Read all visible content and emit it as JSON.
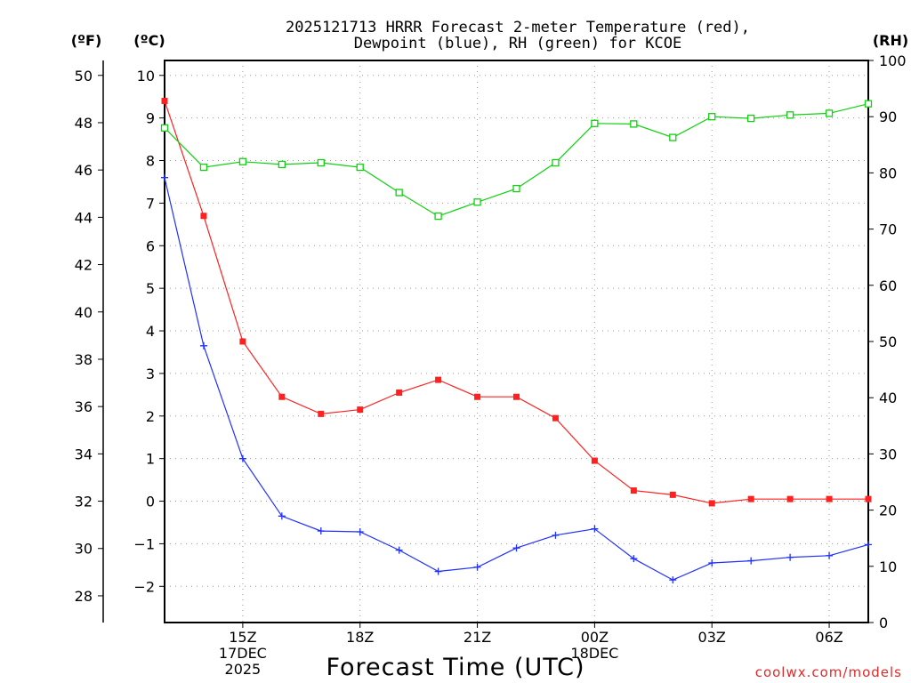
{
  "chart_data": {
    "type": "line",
    "title_lines": [
      "2025121713 HRRR Forecast 2-meter Temperature (red),",
      "Dewpoint (blue), RH (green) for KCOE"
    ],
    "xlabel": "Forecast Time (UTC)",
    "credit": "coolwx.com/models",
    "units": {
      "fahrenheit": "(ºF)",
      "celsius": "(ºC)",
      "rh": "(RH)"
    },
    "x_hours": [
      13,
      14,
      15,
      16,
      17,
      18,
      19,
      20,
      21,
      22,
      23,
      24,
      25,
      26,
      27,
      28,
      29,
      30,
      31
    ],
    "xlim": [
      13,
      31
    ],
    "x_ticks": [
      {
        "hour": 15,
        "lines": [
          "15Z",
          "17DEC",
          "2025"
        ]
      },
      {
        "hour": 18,
        "lines": [
          "18Z"
        ]
      },
      {
        "hour": 21,
        "lines": [
          "21Z"
        ]
      },
      {
        "hour": 24,
        "lines": [
          "00Z",
          "18DEC"
        ]
      },
      {
        "hour": 27,
        "lines": [
          "03Z"
        ]
      },
      {
        "hour": 30,
        "lines": [
          "06Z"
        ]
      }
    ],
    "celsius_axis": {
      "ylim": [
        -2.85,
        10.35
      ],
      "ticks": [
        -2,
        -1,
        0,
        1,
        2,
        3,
        4,
        5,
        6,
        7,
        8,
        9,
        10
      ]
    },
    "fahrenheit_axis": {
      "ticks": [
        28,
        30,
        32,
        34,
        36,
        38,
        40,
        42,
        44,
        46,
        48,
        50
      ]
    },
    "rh_axis": {
      "ylim": [
        0,
        100
      ],
      "ticks": [
        0,
        10,
        20,
        30,
        40,
        50,
        60,
        70,
        80,
        90,
        100
      ]
    },
    "series": [
      {
        "name": "Temperature",
        "color": "#ff2020",
        "marker": "filled-square",
        "axis": "celsius",
        "values": [
          9.4,
          6.7,
          3.75,
          2.45,
          2.05,
          2.15,
          2.55,
          2.85,
          2.45,
          2.45,
          1.95,
          0.95,
          0.25,
          0.15,
          -0.05,
          0.05,
          0.05,
          0.05,
          0.05
        ]
      },
      {
        "name": "Dewpoint",
        "color": "#2030ff",
        "marker": "plus",
        "axis": "celsius",
        "values": [
          7.6,
          3.65,
          1.0,
          -0.35,
          -0.7,
          -0.72,
          -1.15,
          -1.65,
          -1.55,
          -1.1,
          -0.8,
          -0.65,
          -1.35,
          -1.85,
          -1.45,
          -1.4,
          -1.32,
          -1.28,
          -1.02
        ]
      },
      {
        "name": "RH",
        "color": "#10d010",
        "marker": "open-square",
        "axis": "rh",
        "values": [
          88,
          81,
          82,
          81.5,
          81.8,
          81,
          76.5,
          72.3,
          74.8,
          77.2,
          81.8,
          88.8,
          88.7,
          86.3,
          90,
          89.7,
          90.3,
          90.6,
          92.3
        ]
      }
    ]
  }
}
